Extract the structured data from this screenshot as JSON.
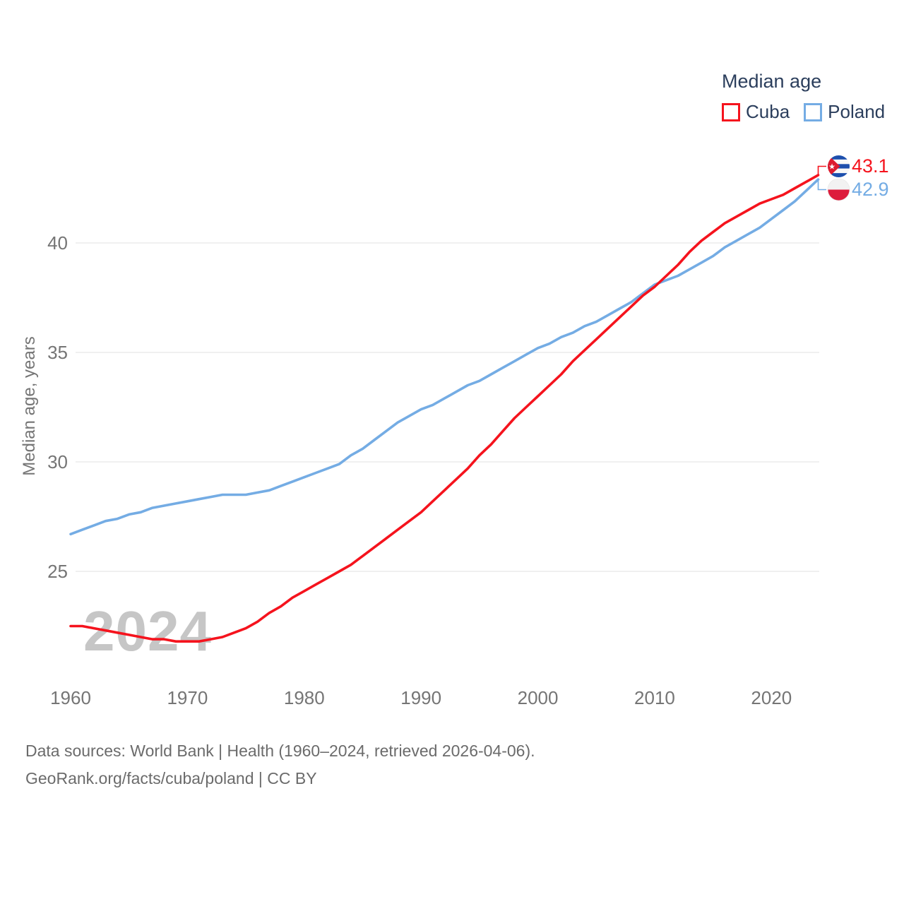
{
  "footer": {
    "line1": "Data sources: World Bank | Health (1960–2024, retrieved 2026-04-06).",
    "line2": "GeoRank.org/facts/cuba/poland | CC BY"
  },
  "chart_data": {
    "type": "line",
    "title": "Median age",
    "ylabel": "Median age, years",
    "watermark": "2024",
    "x_ticks": [
      1960,
      1970,
      1980,
      1990,
      2000,
      2010,
      2020
    ],
    "y_ticks": [
      25,
      30,
      35,
      40
    ],
    "xlim": [
      1960,
      2024
    ],
    "ylim": [
      21.5,
      44
    ],
    "grid": "horizontal",
    "legend_position": "top-right",
    "axis_text_color": "#757575",
    "grid_color": "#e7e7e7",
    "series": [
      {
        "name": "Cuba",
        "color": "#f5131d",
        "start_year": 1960,
        "end_label": "43.1",
        "flag": "cuba-flag",
        "values": [
          22.5,
          22.5,
          22.4,
          22.3,
          22.2,
          22.1,
          22.0,
          21.9,
          21.9,
          21.8,
          21.8,
          21.8,
          21.9,
          22.0,
          22.2,
          22.4,
          22.7,
          23.1,
          23.4,
          23.8,
          24.1,
          24.4,
          24.7,
          25.0,
          25.3,
          25.7,
          26.1,
          26.5,
          26.9,
          27.3,
          27.7,
          28.2,
          28.7,
          29.2,
          29.7,
          30.3,
          30.8,
          31.4,
          32.0,
          32.5,
          33.0,
          33.5,
          34.0,
          34.6,
          35.1,
          35.6,
          36.1,
          36.6,
          37.1,
          37.6,
          38.0,
          38.5,
          39.0,
          39.6,
          40.1,
          40.5,
          40.9,
          41.2,
          41.5,
          41.8,
          42.0,
          42.2,
          42.5,
          42.8,
          43.1
        ]
      },
      {
        "name": "Poland",
        "color": "#74ace4",
        "start_year": 1960,
        "end_label": "42.9",
        "flag": "poland-flag",
        "values": [
          26.7,
          26.9,
          27.1,
          27.3,
          27.4,
          27.6,
          27.7,
          27.9,
          28.0,
          28.1,
          28.2,
          28.3,
          28.4,
          28.5,
          28.5,
          28.5,
          28.6,
          28.7,
          28.9,
          29.1,
          29.3,
          29.5,
          29.7,
          29.9,
          30.3,
          30.6,
          31.0,
          31.4,
          31.8,
          32.1,
          32.4,
          32.6,
          32.9,
          33.2,
          33.5,
          33.7,
          34.0,
          34.3,
          34.6,
          34.9,
          35.2,
          35.4,
          35.7,
          35.9,
          36.2,
          36.4,
          36.7,
          37.0,
          37.3,
          37.7,
          38.1,
          38.3,
          38.5,
          38.8,
          39.1,
          39.4,
          39.8,
          40.1,
          40.4,
          40.7,
          41.1,
          41.5,
          41.9,
          42.4,
          42.9
        ]
      }
    ]
  }
}
